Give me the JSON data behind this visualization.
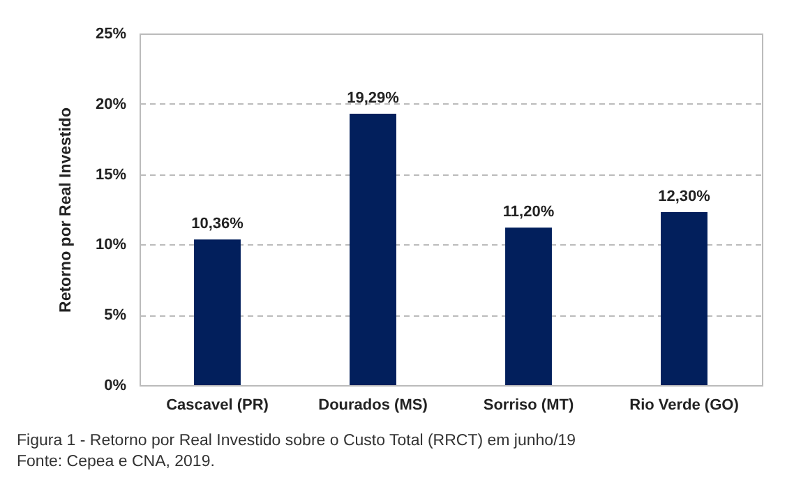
{
  "chart_data": {
    "type": "bar",
    "ylabel": "Retorno por Real Investido",
    "categories": [
      "Cascavel (PR)",
      "Dourados (MS)",
      "Sorriso (MT)",
      "Rio Verde (GO)"
    ],
    "values": [
      10.36,
      19.29,
      11.2,
      12.3
    ],
    "value_labels": [
      "10,36%",
      "19,29%",
      "11,20%",
      "12,30%"
    ],
    "color": "#021f5c",
    "ylim": [
      0,
      25
    ],
    "yticks": [
      {
        "value": 0,
        "label": "0%"
      },
      {
        "value": 5,
        "label": "5%"
      },
      {
        "value": 10,
        "label": "10%"
      },
      {
        "value": 15,
        "label": "15%"
      },
      {
        "value": 20,
        "label": "20%"
      },
      {
        "value": 25,
        "label": "25%"
      }
    ],
    "grid": "y",
    "annotations": [
      "Figura 1 - Retorno por Real Investido sobre o Custo Total (RRCT) em junho/19",
      "Fonte: Cepea e CNA, 2019."
    ]
  }
}
